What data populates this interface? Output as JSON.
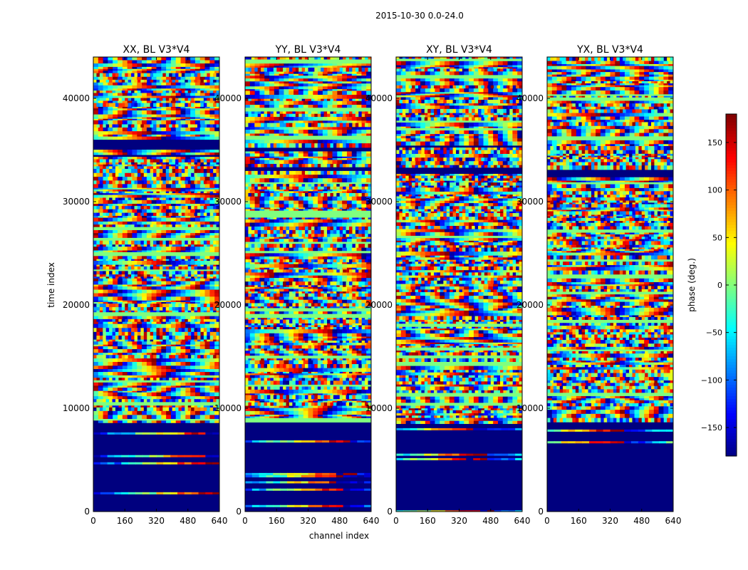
{
  "chart_data": {
    "type": "heatmap",
    "suptitle": "2015-10-30 0.0-24.0",
    "xlabel": "channel index",
    "ylabel": "time index",
    "xlim": [
      0,
      640
    ],
    "ylim": [
      0,
      44000
    ],
    "xticks": [
      "0",
      "160",
      "320",
      "480",
      "640"
    ],
    "yticks": [
      "0",
      "10000",
      "20000",
      "30000",
      "40000"
    ],
    "panels": [
      {
        "title": "XX, BL V3*V4"
      },
      {
        "title": "YY, BL V3*V4"
      },
      {
        "title": "XY, BL V3*V4"
      },
      {
        "title": "YX, BL V3*V4"
      }
    ],
    "colorbar": {
      "label": "phase (deg.)",
      "range": [
        -180,
        180
      ],
      "ticks": [
        "150",
        "100",
        "50",
        "0",
        "−50",
        "−100",
        "−150"
      ],
      "tick_values": [
        150,
        100,
        50,
        0,
        -50,
        -100,
        -150
      ],
      "colormap": "jet",
      "colors": [
        "#00007f",
        "#0000ff",
        "#007fff",
        "#00ffff",
        "#7fff7f",
        "#ffff00",
        "#ff7f00",
        "#ff0000",
        "#7f0000"
      ]
    }
  }
}
